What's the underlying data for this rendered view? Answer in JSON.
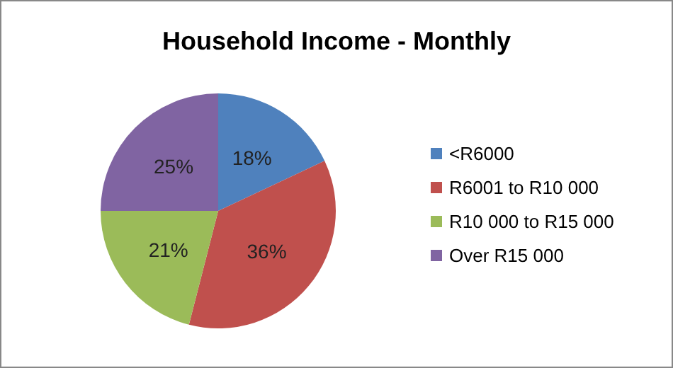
{
  "chart_data": {
    "type": "pie",
    "title": "Household Income - Monthly",
    "categories": [
      "<R6000",
      "R6001 to R10 000",
      "R10 000 to R15 000",
      "Over R15 000"
    ],
    "values": [
      18,
      36,
      21,
      25
    ],
    "value_labels": [
      "18%",
      "36%",
      "21%",
      "25%"
    ],
    "colors": [
      "#4f81bd",
      "#c0504d",
      "#9bbb59",
      "#8064a2"
    ],
    "legend": "right"
  }
}
